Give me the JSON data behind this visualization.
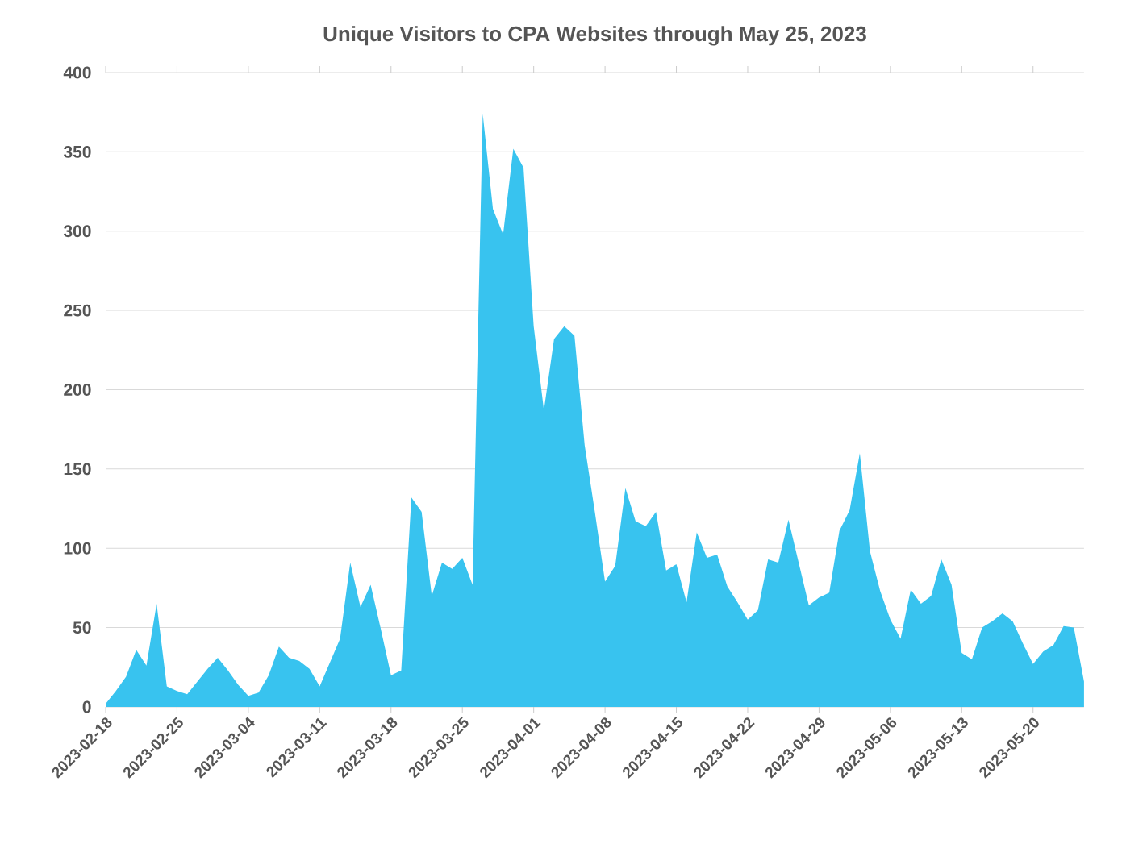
{
  "chart_data": {
    "type": "area",
    "title": "Unique Visitors to CPA Websites through May 25, 2023",
    "x": [
      "2023-02-18",
      "2023-02-19",
      "2023-02-20",
      "2023-02-21",
      "2023-02-22",
      "2023-02-23",
      "2023-02-24",
      "2023-02-25",
      "2023-02-26",
      "2023-02-27",
      "2023-02-28",
      "2023-03-01",
      "2023-03-02",
      "2023-03-03",
      "2023-03-04",
      "2023-03-05",
      "2023-03-06",
      "2023-03-07",
      "2023-03-08",
      "2023-03-09",
      "2023-03-10",
      "2023-03-11",
      "2023-03-12",
      "2023-03-13",
      "2023-03-14",
      "2023-03-15",
      "2023-03-16",
      "2023-03-17",
      "2023-03-18",
      "2023-03-19",
      "2023-03-20",
      "2023-03-21",
      "2023-03-22",
      "2023-03-23",
      "2023-03-24",
      "2023-03-25",
      "2023-03-26",
      "2023-03-27",
      "2023-03-28",
      "2023-03-29",
      "2023-03-30",
      "2023-03-31",
      "2023-04-01",
      "2023-04-02",
      "2023-04-03",
      "2023-04-04",
      "2023-04-05",
      "2023-04-06",
      "2023-04-07",
      "2023-04-08",
      "2023-04-09",
      "2023-04-10",
      "2023-04-11",
      "2023-04-12",
      "2023-04-13",
      "2023-04-14",
      "2023-04-15",
      "2023-04-16",
      "2023-04-17",
      "2023-04-18",
      "2023-04-19",
      "2023-04-20",
      "2023-04-21",
      "2023-04-22",
      "2023-04-23",
      "2023-04-24",
      "2023-04-25",
      "2023-04-26",
      "2023-04-27",
      "2023-04-28",
      "2023-04-29",
      "2023-04-30",
      "2023-05-01",
      "2023-05-02",
      "2023-05-03",
      "2023-05-04",
      "2023-05-05",
      "2023-05-06",
      "2023-05-07",
      "2023-05-08",
      "2023-05-09",
      "2023-05-10",
      "2023-05-11",
      "2023-05-12",
      "2023-05-13",
      "2023-05-14",
      "2023-05-15",
      "2023-05-16",
      "2023-05-17",
      "2023-05-18",
      "2023-05-19",
      "2023-05-20",
      "2023-05-21",
      "2023-05-22",
      "2023-05-23",
      "2023-05-24",
      "2023-05-25"
    ],
    "values": [
      2,
      10,
      19,
      36,
      26,
      65,
      13,
      10,
      8,
      16,
      24,
      31,
      23,
      14,
      7,
      9,
      20,
      38,
      31,
      29,
      24,
      13,
      28,
      43,
      91,
      63,
      77,
      49,
      20,
      23,
      132,
      123,
      70,
      91,
      87,
      94,
      77,
      374,
      314,
      298,
      352,
      340,
      240,
      187,
      232,
      240,
      234,
      165,
      123,
      79,
      89,
      138,
      117,
      114,
      123,
      86,
      90,
      66,
      110,
      94,
      96,
      76,
      66,
      55,
      61,
      93,
      91,
      118,
      91,
      64,
      69,
      72,
      111,
      124,
      160,
      98,
      73,
      55,
      43,
      74,
      65,
      70,
      93,
      77,
      34,
      30,
      50,
      54,
      59,
      54,
      40,
      27,
      35,
      39,
      51,
      50,
      16
    ],
    "color": "#38c3ef",
    "xlim": [
      "2023-02-18",
      "2023-05-25"
    ],
    "xticks": [
      "2023-02-18",
      "2023-02-25",
      "2023-03-04",
      "2023-03-11",
      "2023-03-18",
      "2023-03-25",
      "2023-04-01",
      "2023-04-08",
      "2023-04-15",
      "2023-04-22",
      "2023-04-29",
      "2023-05-06",
      "2023-05-13",
      "2023-05-20"
    ],
    "ylim": [
      0,
      400
    ],
    "yticks": [
      0,
      50,
      100,
      150,
      200,
      250,
      300,
      350,
      400
    ],
    "grid": "y"
  }
}
